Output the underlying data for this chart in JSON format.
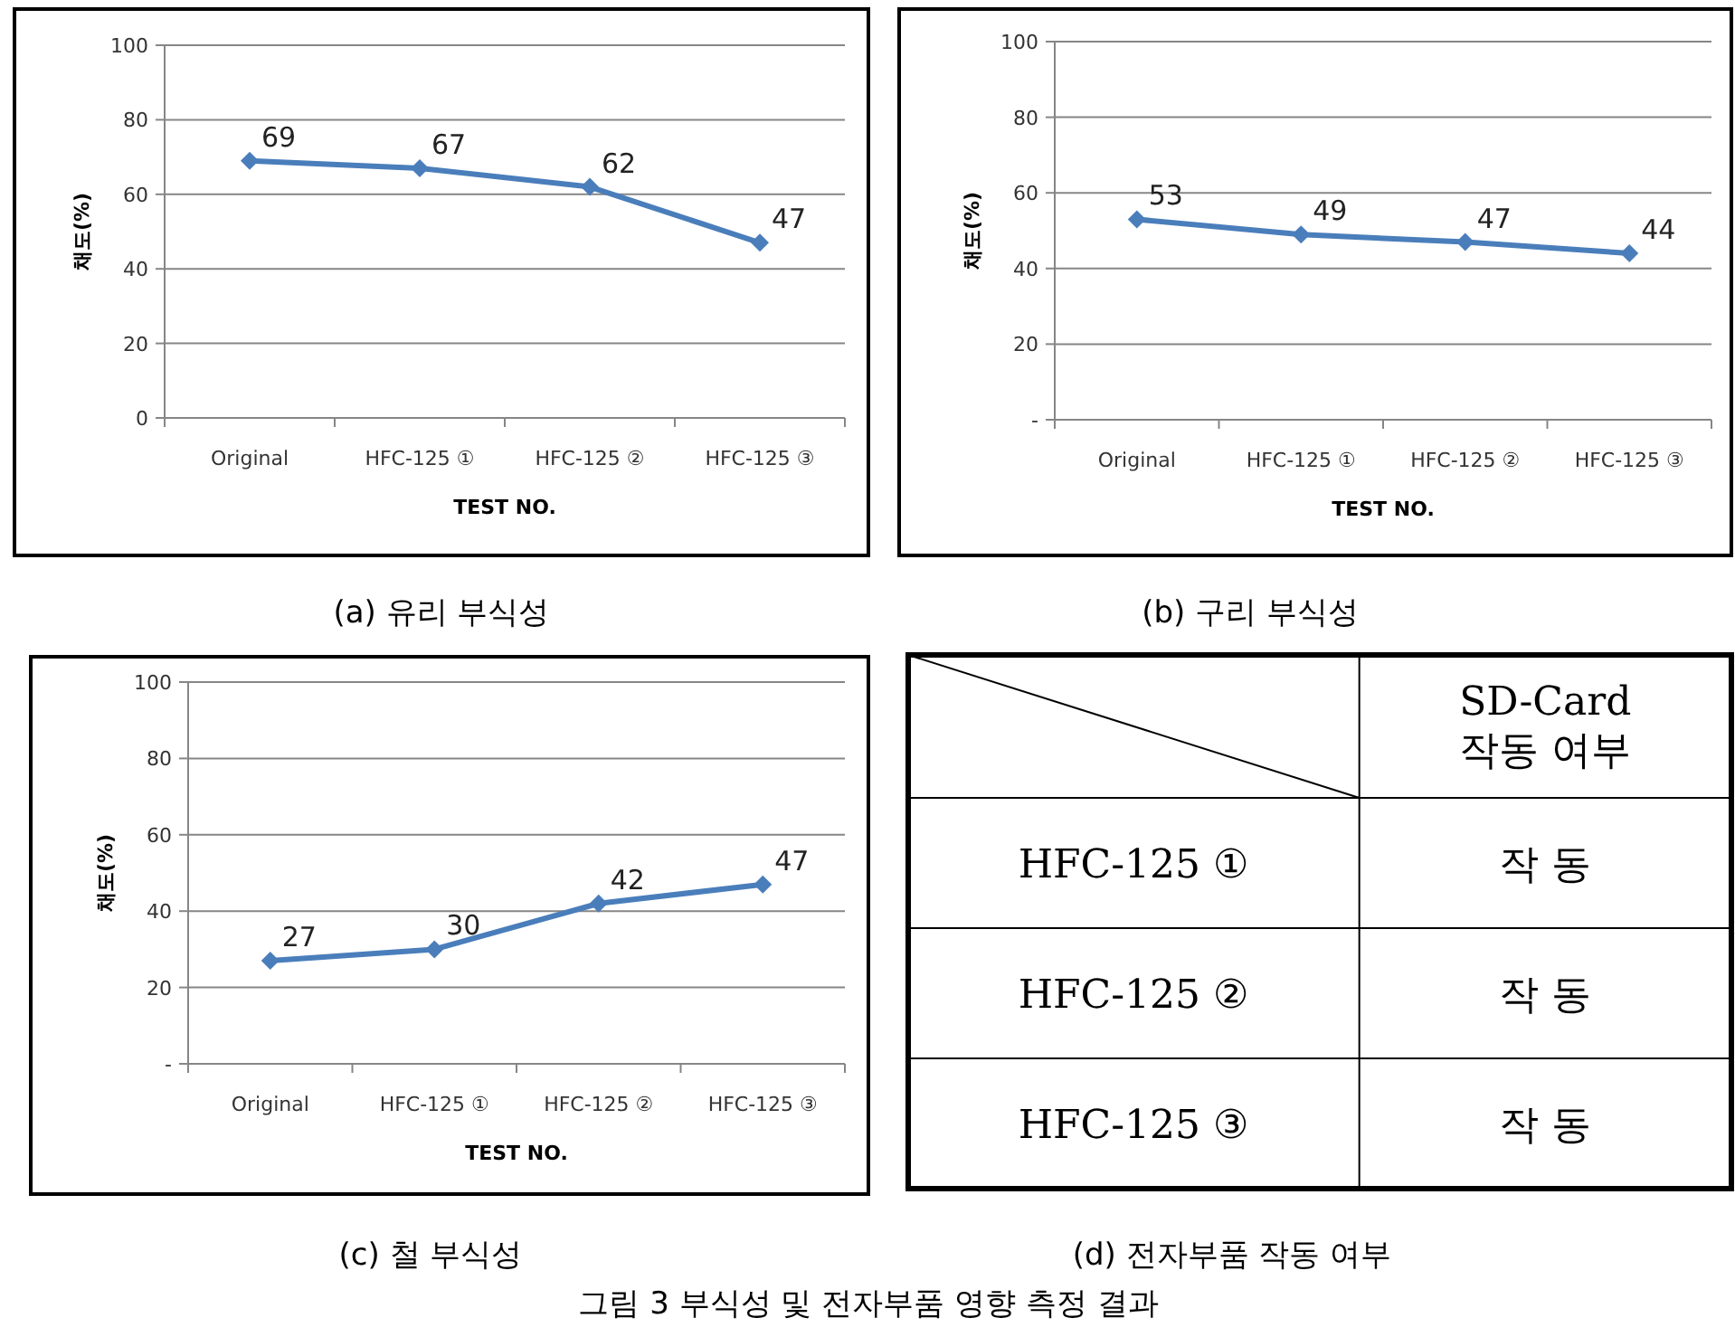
{
  "chart_data": [
    {
      "type": "line",
      "title": "(a) 유리 부식성",
      "xlabel": "TEST NO.",
      "ylabel": "채도(%)",
      "categories": [
        "Original",
        "HFC-125 ①",
        "HFC-125 ②",
        "HFC-125 ③"
      ],
      "values": [
        69,
        67,
        62,
        47
      ],
      "color": "#4a7ebb",
      "marker": "diamond",
      "data_labels": true,
      "grid": "y",
      "ylim": [
        0,
        100
      ],
      "yticks": [
        0,
        20,
        40,
        60,
        80,
        100
      ]
    },
    {
      "type": "line",
      "title": "(b) 구리 부식성",
      "xlabel": "TEST NO.",
      "ylabel": "채도(%)",
      "categories": [
        "Original",
        "HFC-125 ①",
        "HFC-125 ②",
        "HFC-125 ③"
      ],
      "values": [
        53,
        49,
        47,
        44
      ],
      "color": "#4a7ebb",
      "marker": "diamond",
      "data_labels": true,
      "grid": "y",
      "ylim": [
        0,
        100
      ],
      "yticks": [
        {
          "value": 0,
          "label": "-"
        },
        20,
        40,
        60,
        80,
        100
      ]
    },
    {
      "type": "line",
      "title": "(c) 철 부식성",
      "xlabel": "TEST NO.",
      "ylabel": "채도(%)",
      "categories": [
        "Original",
        "HFC-125 ①",
        "HFC-125 ②",
        "HFC-125 ③"
      ],
      "values": [
        27,
        30,
        42,
        47
      ],
      "color": "#4a7ebb",
      "marker": "diamond",
      "data_labels": true,
      "grid": "y",
      "ylim": [
        0,
        100
      ],
      "yticks": [
        {
          "value": 0,
          "label": "-"
        },
        20,
        40,
        60,
        80,
        100
      ]
    },
    {
      "type": "other",
      "title": "(d) 전자부품 작동 여부",
      "annotations": [
        "SD-Card 작동 여부",
        "HFC-125 ①",
        "작 동",
        "HFC-125 ②",
        "작 동",
        "HFC-125 ③",
        "작 동",
        "그림 3 부식성 및 전자부품 영향 측정 결과"
      ]
    }
  ]
}
